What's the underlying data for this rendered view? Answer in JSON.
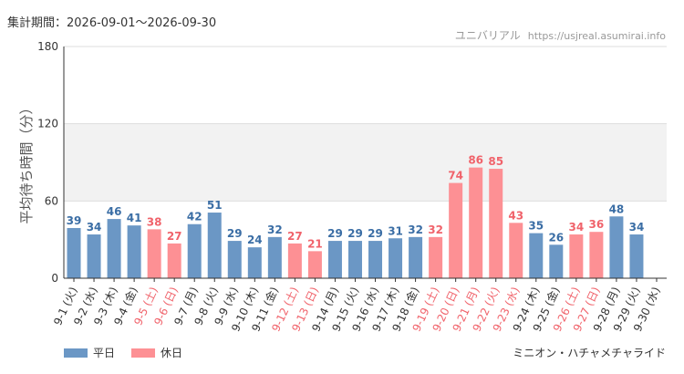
{
  "header": {
    "period": "集計期間：2026-09-01～2026-09-30",
    "site_name": "ユニバリアル",
    "site_url": "https://usjreal.asumirai.info"
  },
  "footer": {
    "attraction": "ミニオン・ハチャメチャライド"
  },
  "colors": {
    "weekday": "#6b97c5",
    "holiday": "#fd9094",
    "weekday_label": "#3b6ea5",
    "holiday_label": "#f0636b",
    "band": "#f2f2f2",
    "grid": "#dddddd",
    "axis": "#333333"
  },
  "chart_data": {
    "type": "bar",
    "ylabel": "平均待ち時間（分）",
    "xlabel": "",
    "ylim": [
      0,
      180
    ],
    "yticks": [
      0,
      60,
      120,
      180
    ],
    "shaded_band": [
      60,
      120
    ],
    "legend_position": "bottom-left",
    "legend": [
      {
        "name": "平日",
        "kind": "weekday"
      },
      {
        "name": "休日",
        "kind": "holiday"
      }
    ],
    "categories": [
      "9-1 (火)",
      "9-2 (水)",
      "9-3 (木)",
      "9-4 (金)",
      "9-5 (土)",
      "9-6 (日)",
      "9-7 (月)",
      "9-8 (火)",
      "9-9 (水)",
      "9-10 (木)",
      "9-11 (金)",
      "9-12 (土)",
      "9-13 (日)",
      "9-14 (月)",
      "9-15 (火)",
      "9-16 (水)",
      "9-17 (木)",
      "9-18 (金)",
      "9-19 (土)",
      "9-20 (日)",
      "9-21 (月)",
      "9-22 (火)",
      "9-23 (水)",
      "9-24 (木)",
      "9-25 (金)",
      "9-26 (土)",
      "9-27 (日)",
      "9-28 (月)",
      "9-29 (火)",
      "9-30 (水)"
    ],
    "values": [
      39,
      34,
      46,
      41,
      38,
      27,
      42,
      51,
      29,
      24,
      32,
      27,
      21,
      29,
      29,
      29,
      31,
      32,
      32,
      74,
      86,
      85,
      43,
      35,
      26,
      34,
      36,
      48,
      34,
      null
    ],
    "day_type": [
      "weekday",
      "weekday",
      "weekday",
      "weekday",
      "holiday",
      "holiday",
      "weekday",
      "weekday",
      "weekday",
      "weekday",
      "weekday",
      "holiday",
      "holiday",
      "weekday",
      "weekday",
      "weekday",
      "weekday",
      "weekday",
      "holiday",
      "holiday",
      "holiday",
      "holiday",
      "holiday",
      "weekday",
      "weekday",
      "holiday",
      "holiday",
      "weekday",
      "weekday",
      "weekday"
    ]
  }
}
